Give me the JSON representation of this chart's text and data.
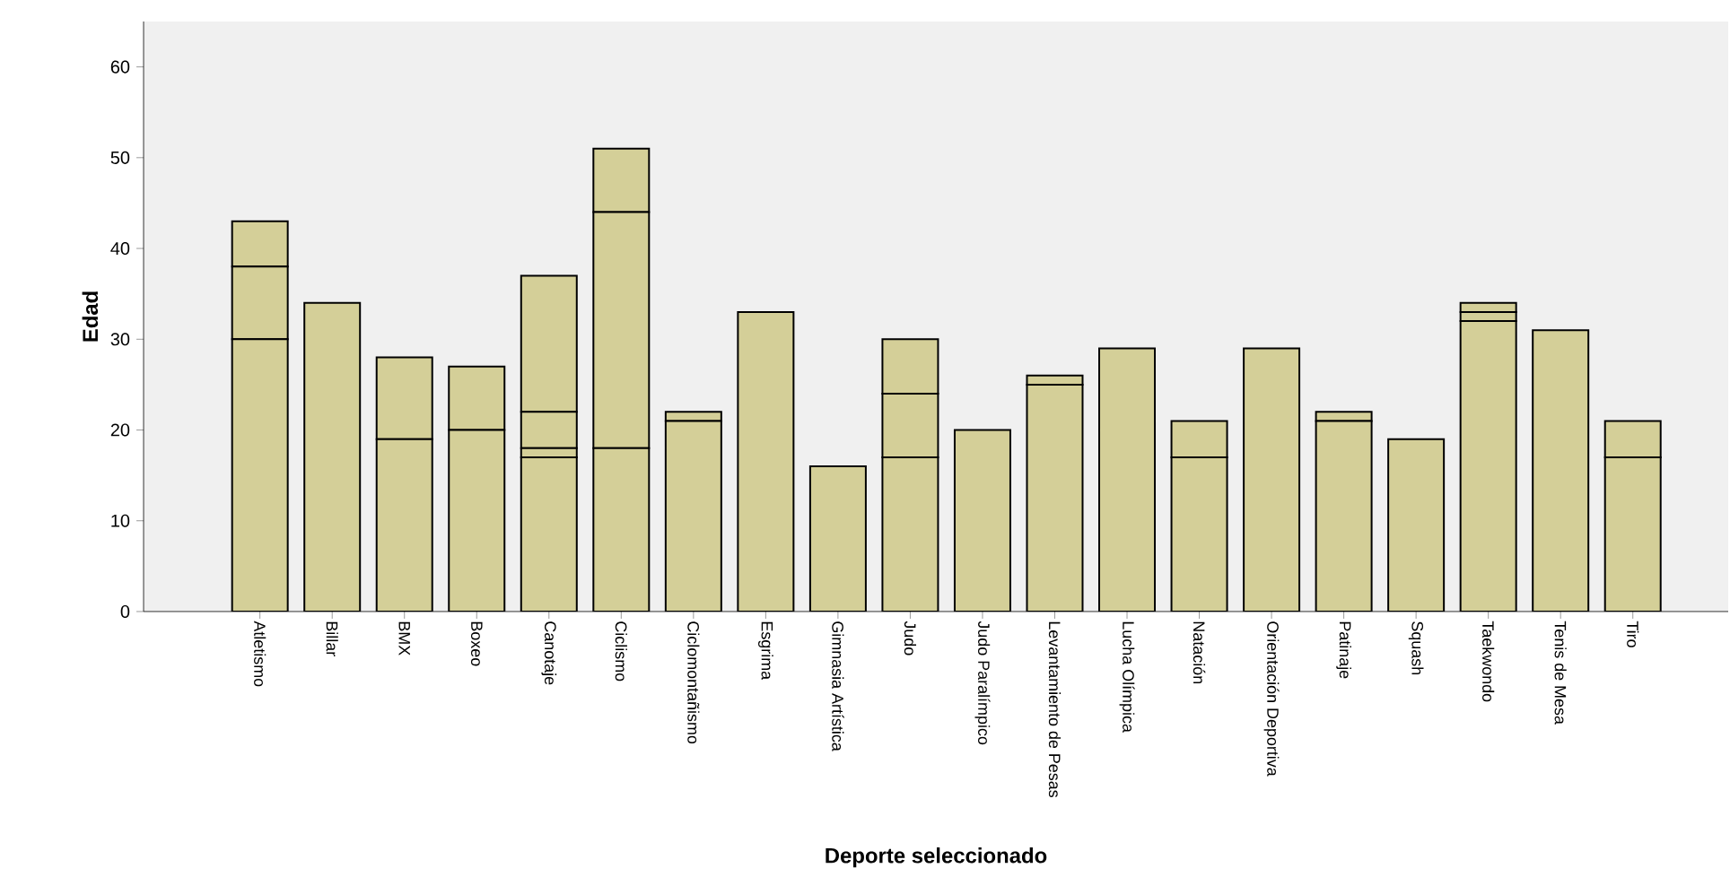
{
  "chart_data": {
    "type": "bar",
    "stacked": true,
    "xlabel": "Deporte seleccionado",
    "ylabel": "Edad",
    "categories": [
      "Atletismo",
      "Billar",
      "BMX",
      "Boxeo",
      "Canotaje",
      "Ciclismo",
      "Ciclomontañismo",
      "Esgrima",
      "Gimnasia Artística",
      "Judo",
      "Judo Paralímpico",
      "Levantamiento de Pesas",
      "Lucha Olímpica",
      "Natación",
      "Orientación Deportiva",
      "Patinaje",
      "Squash",
      "Taekwondo",
      "Tenis de Mesa",
      "Tiro"
    ],
    "series": [
      {
        "color": "#d4cf98",
        "values": [
          30,
          34,
          19,
          20,
          17,
          18,
          21,
          33,
          16,
          17,
          20,
          25,
          29,
          17,
          29,
          21,
          19,
          32,
          31,
          17
        ]
      },
      {
        "color": "#d4cf98",
        "values": [
          8,
          null,
          9,
          7,
          1,
          26,
          1,
          null,
          null,
          7,
          null,
          1,
          null,
          4,
          null,
          1,
          null,
          1,
          null,
          4
        ]
      },
      {
        "color": "#d4cf98",
        "values": [
          5,
          null,
          null,
          null,
          4,
          7,
          null,
          null,
          null,
          6,
          null,
          null,
          null,
          null,
          null,
          null,
          null,
          1,
          null,
          null
        ]
      },
      {
        "color": "#d4cf98",
        "values": [
          null,
          null,
          null,
          null,
          15,
          null,
          null,
          null,
          null,
          null,
          null,
          null,
          null,
          null,
          null,
          null,
          null,
          null,
          null,
          null
        ]
      }
    ],
    "ylim": [
      0,
      65
    ],
    "yticks": [
      0,
      10,
      20,
      30,
      40,
      50,
      60
    ],
    "grid": false
  }
}
